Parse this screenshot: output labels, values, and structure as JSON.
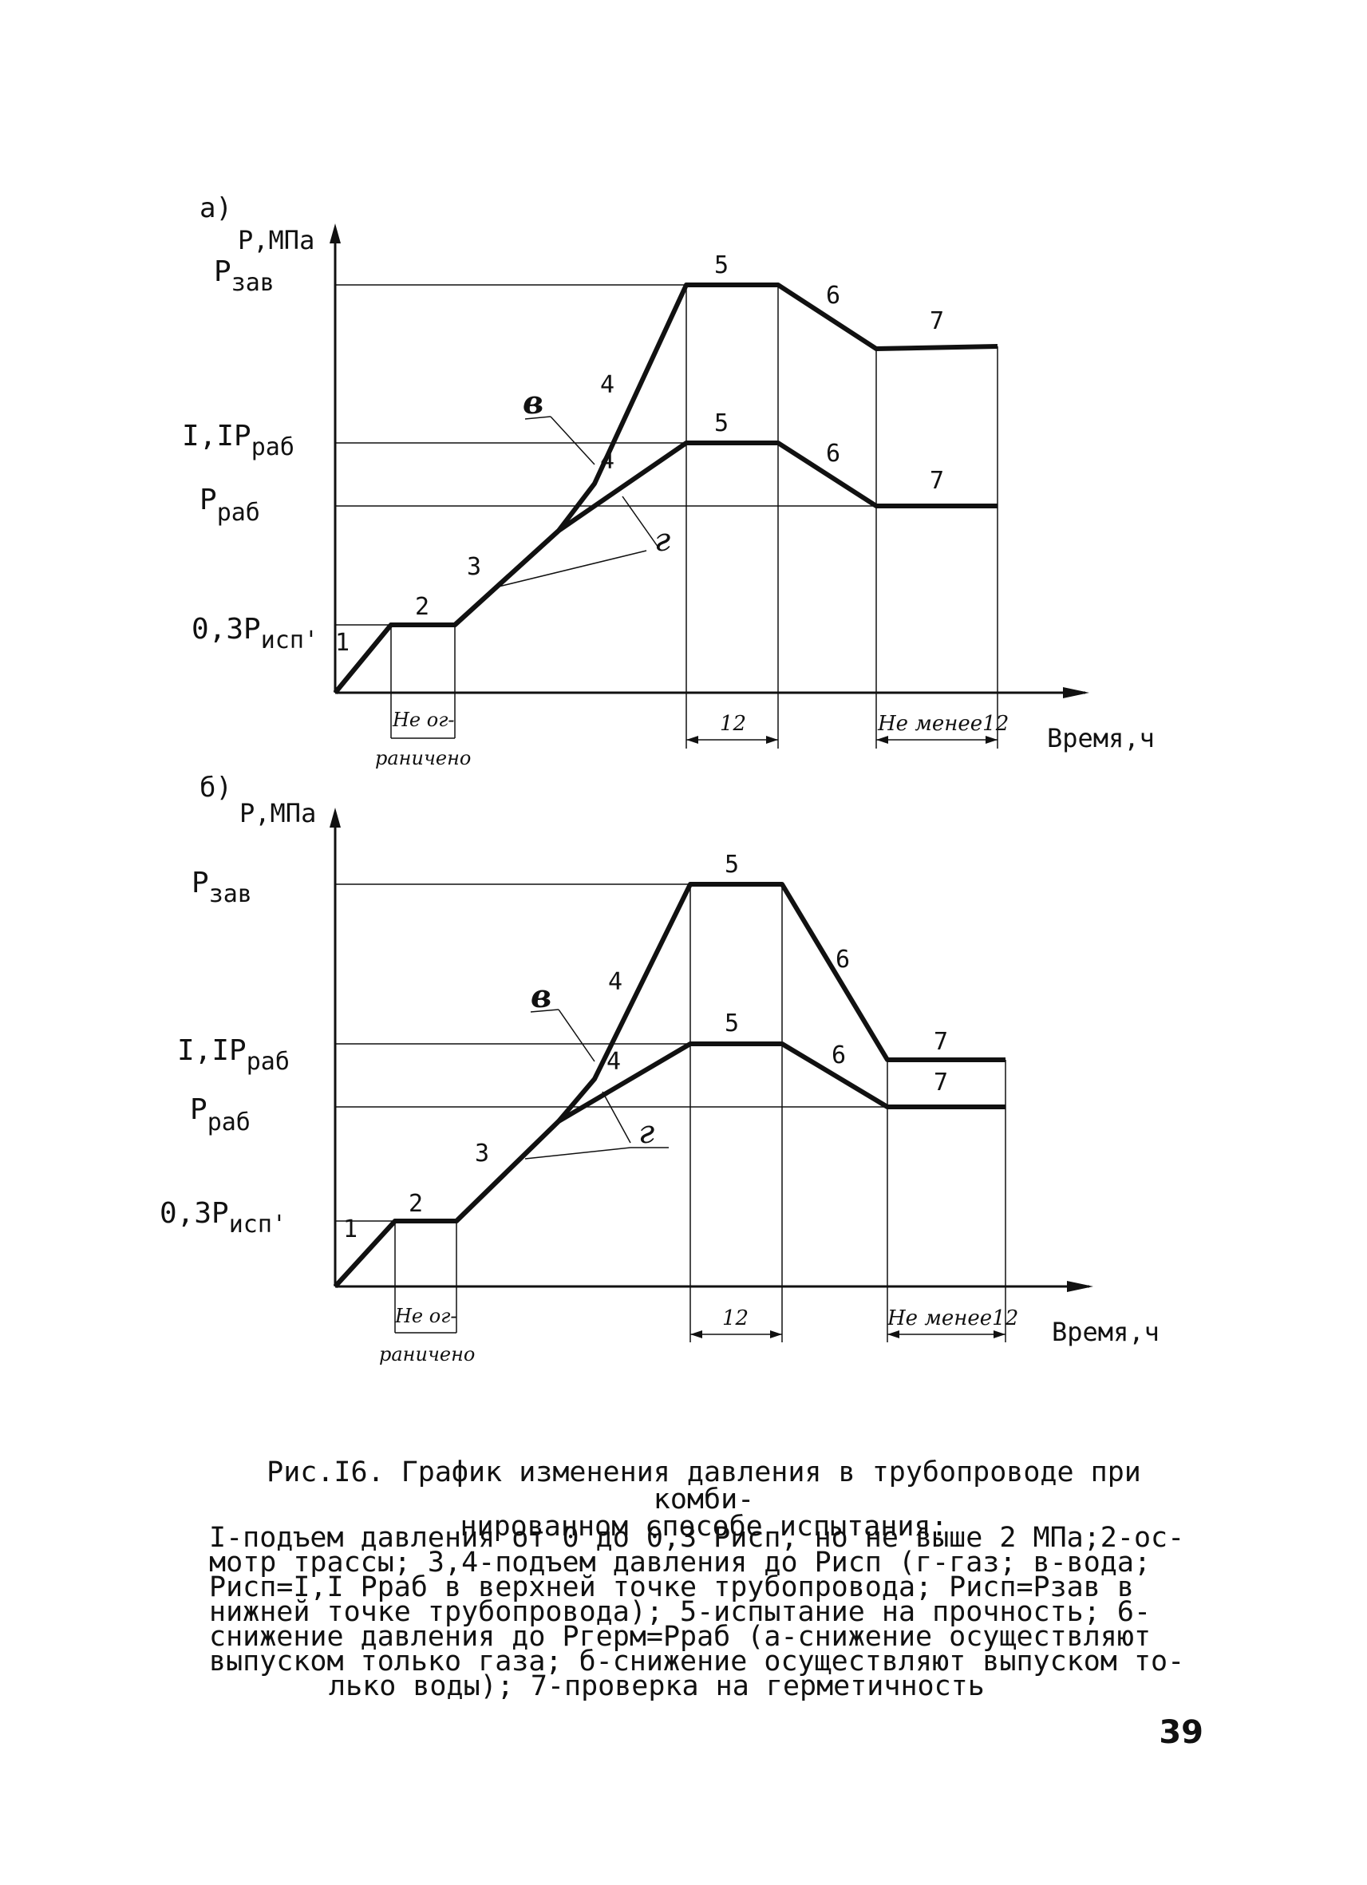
{
  "chart_data": [
    {
      "type": "line",
      "panel_label": "а)",
      "ylabel": "Р,МПа",
      "xlabel": "Время,ч",
      "y_levels": [
        {
          "key": "zav",
          "label": "Р",
          "sub": "зав"
        },
        {
          "key": "11",
          "label": "I,IР",
          "sub": "раб"
        },
        {
          "key": "rab",
          "label": "Р",
          "sub": "раб"
        },
        {
          "key": "03",
          "label": "0,3Р",
          "sub": "исп'"
        }
      ],
      "series": [
        {
          "name": "в",
          "points": [
            [
              0,
              0
            ],
            [
              1,
              1
            ],
            [
              2,
              1
            ],
            [
              3,
              2
            ],
            [
              3.55,
              3
            ],
            [
              4,
              4
            ],
            [
              5,
              4
            ],
            [
              6,
              3.1
            ],
            [
              7,
              3.1
            ]
          ]
        },
        {
          "name": "г",
          "points": [
            [
              0,
              0
            ],
            [
              1,
              1
            ],
            [
              2,
              1
            ],
            [
              3,
              2
            ],
            [
              4,
              3
            ],
            [
              5,
              3
            ],
            [
              6,
              2
            ],
            [
              7,
              2
            ]
          ]
        }
      ],
      "stage_labels": [
        "1",
        "2",
        "3",
        "4",
        "4",
        "5",
        "5",
        "6",
        "6",
        "7",
        "7"
      ],
      "durations": [
        "Не ог-раничено",
        "12",
        "Не менее12"
      ]
    },
    {
      "type": "line",
      "panel_label": "б)",
      "ylabel": "Р,МПа",
      "xlabel": "Время,ч",
      "y_levels": [
        {
          "key": "zav",
          "label": "Р",
          "sub": "зав"
        },
        {
          "key": "11",
          "label": "I,IР",
          "sub": "раб"
        },
        {
          "key": "rab",
          "label": "Р",
          "sub": "раб"
        },
        {
          "key": "03",
          "label": "0,3Р",
          "sub": "исп'"
        }
      ],
      "series": [
        {
          "name": "в",
          "points": [
            [
              0,
              0
            ],
            [
              1,
              1
            ],
            [
              2,
              1
            ],
            [
              3,
              2
            ],
            [
              3.55,
              3
            ],
            [
              4,
              4
            ],
            [
              5,
              4
            ],
            [
              6,
              2.15
            ],
            [
              7,
              2.15
            ]
          ]
        },
        {
          "name": "г",
          "points": [
            [
              0,
              0
            ],
            [
              1,
              1
            ],
            [
              2,
              1
            ],
            [
              3,
              2
            ],
            [
              4,
              3
            ],
            [
              5,
              3
            ],
            [
              6,
              2
            ],
            [
              7,
              2
            ]
          ]
        }
      ],
      "stage_labels": [
        "1",
        "2",
        "3",
        "4",
        "4",
        "5",
        "5",
        "6",
        "6",
        "7",
        "7"
      ],
      "durations": [
        "Не ог-раничено",
        "12",
        "Не менее12"
      ]
    }
  ],
  "annotations": {
    "v": "в",
    "g": "г"
  },
  "caption": {
    "title_line1": "Рис.I6. График изменения давления в трубопроводе при комби-",
    "title_line2": "нированном способе испытания:",
    "body": [
      "I-подъем давления от 0 до 0,3 Рисп, но не выше 2 МПа;2-ос-",
      "мотр трассы; 3,4-подъем давления  до Рисп (г-газ; в-вода;",
      "Рисп=I,I Рраб в верхней точке трубопровода; Рисп=Рзав   в",
      "нижней точке трубопровода); 5-испытание на прочность; 6-",
      "снижение давления до Ргерм=Рраб (а-снижение осуществляют",
      "выпуском только газа; б-снижение осуществляют выпуском то-",
      "лько воды); 7-проверка на герметичность"
    ]
  },
  "page_number": "39"
}
